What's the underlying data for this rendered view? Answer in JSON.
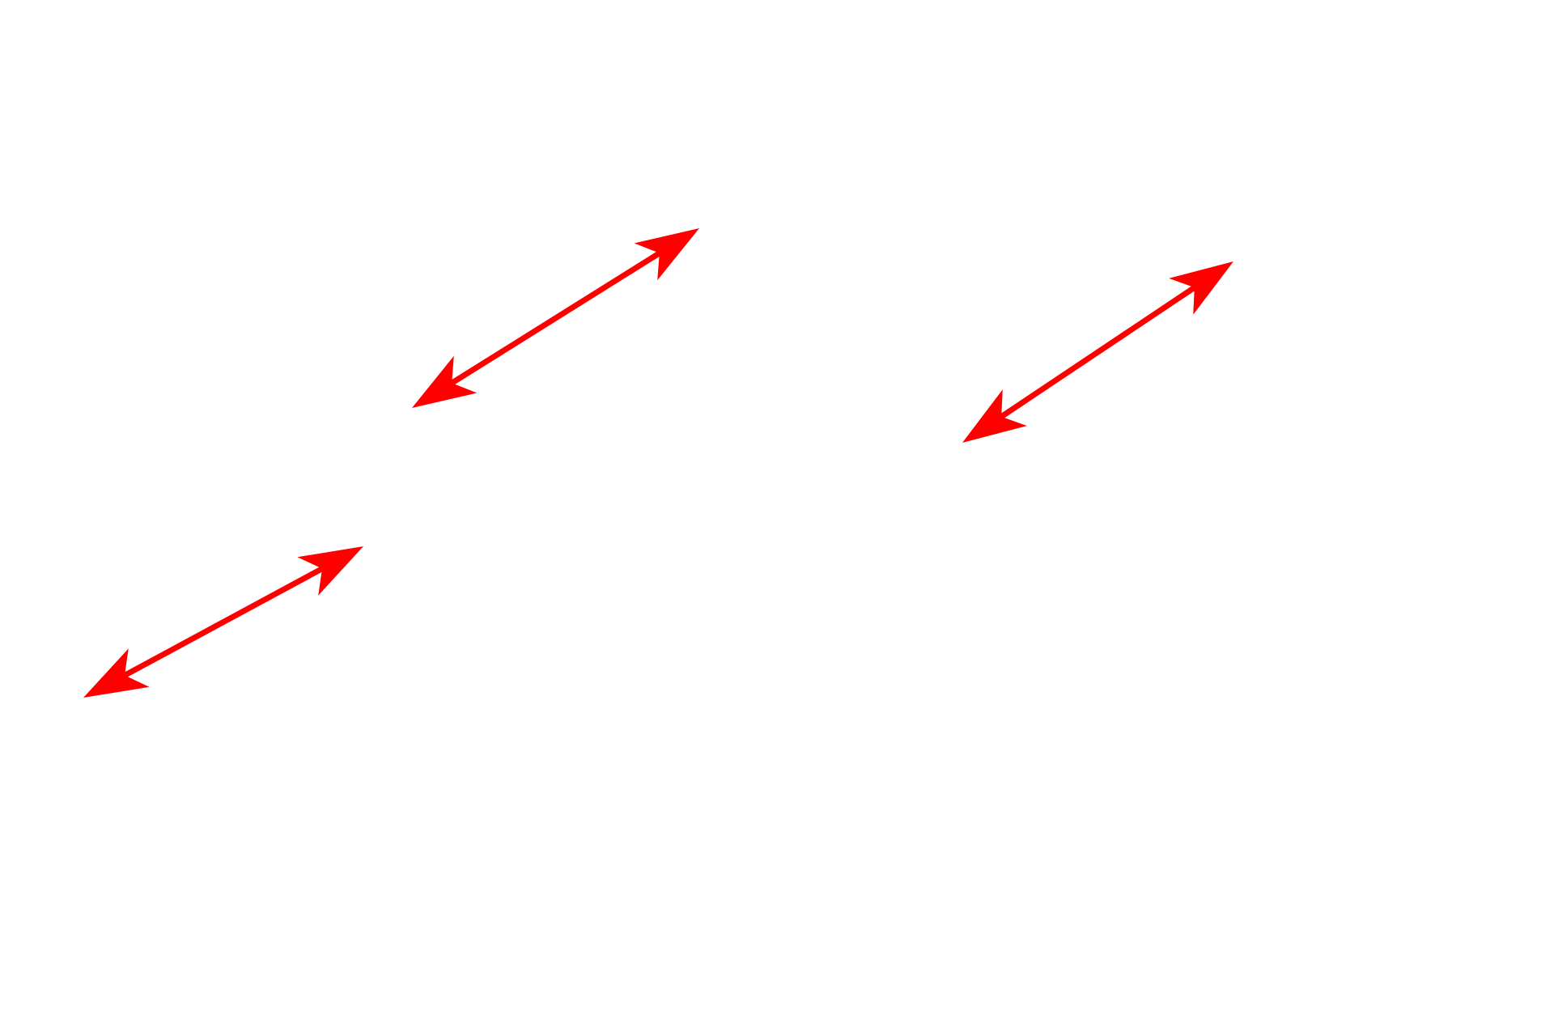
{
  "diagram": {
    "background_color": "#ffffff",
    "arrow_color": "#ff0000",
    "arrows": [
      {
        "name": "double-arrow-upper-middle",
        "style": "double-headed"
      },
      {
        "name": "double-arrow-upper-right",
        "style": "double-headed"
      },
      {
        "name": "double-arrow-lower-left",
        "style": "double-headed"
      }
    ]
  }
}
